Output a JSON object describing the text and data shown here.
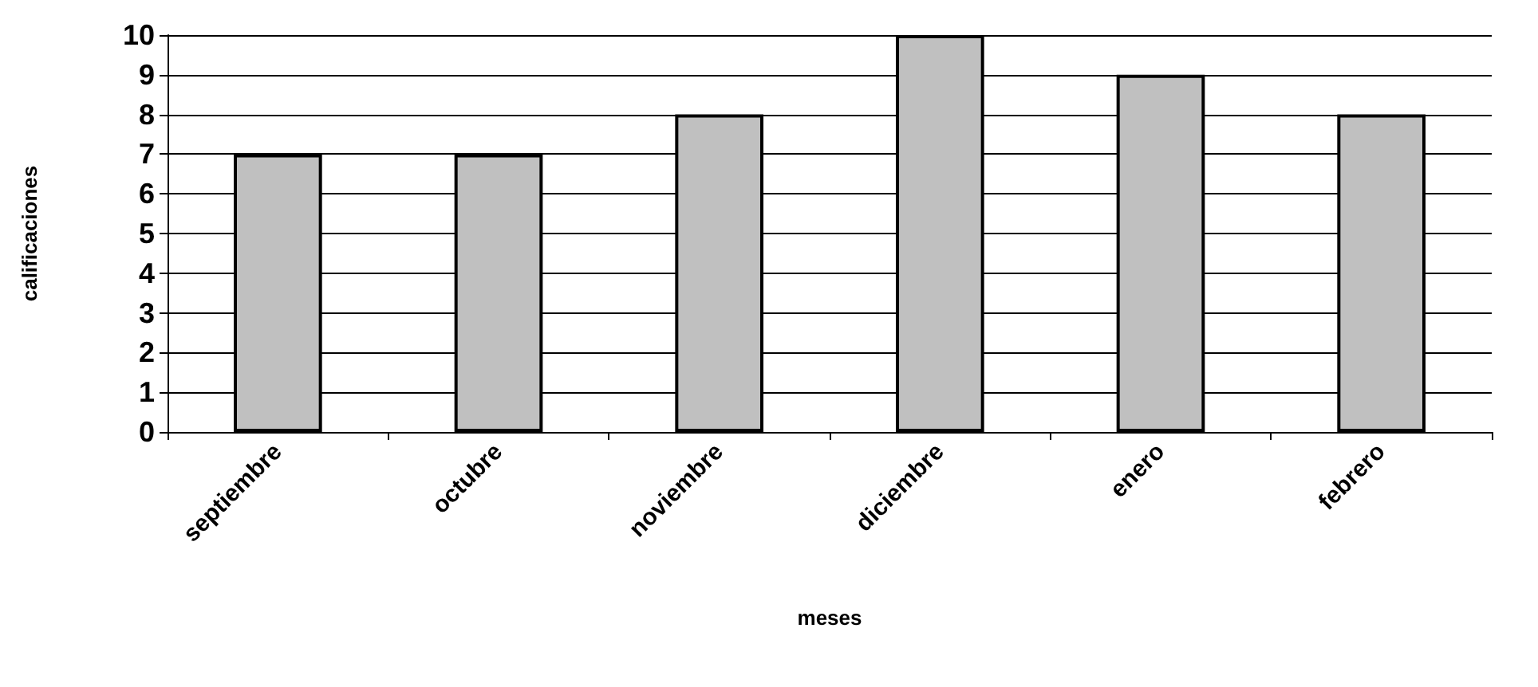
{
  "chart_data": {
    "type": "bar",
    "xlabel": "meses",
    "ylabel": "calificaciones",
    "categories": [
      "septiembre",
      "octubre",
      "noviembre",
      "diciembre",
      "enero",
      "febrero"
    ],
    "values": [
      7,
      7,
      8,
      10,
      9,
      8
    ],
    "color": "#c0c0c0",
    "ylim": [
      0,
      10
    ],
    "yticks": [
      0,
      1,
      2,
      3,
      4,
      5,
      6,
      7,
      8,
      9,
      10
    ],
    "grid": "y"
  }
}
